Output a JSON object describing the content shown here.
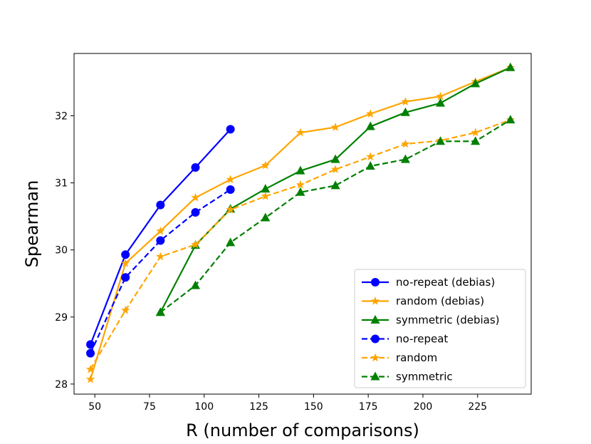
{
  "chart_data": {
    "type": "line",
    "title": "",
    "xlabel": "R (number of comparisons)",
    "ylabel": "Spearman",
    "xlim": [
      40.5,
      249.5
    ],
    "ylim": [
      27.85,
      32.93
    ],
    "xticks": [
      50,
      75,
      100,
      125,
      150,
      175,
      200,
      225
    ],
    "yticks": [
      28,
      29,
      30,
      31,
      32
    ],
    "legend_position": "bottom-right",
    "series": [
      {
        "name": "no-repeat (debias)",
        "color": "#0000ff",
        "linestyle": "solid",
        "marker": "circle",
        "x": [
          48,
          64,
          80,
          96,
          112
        ],
        "y": [
          28.59,
          29.93,
          30.67,
          31.23,
          31.8
        ]
      },
      {
        "name": "random (debias)",
        "color": "#ffa500",
        "linestyle": "solid",
        "marker": "star",
        "x": [
          48,
          64,
          80,
          96,
          112,
          128,
          144,
          160,
          176,
          192,
          208,
          224,
          240
        ],
        "y": [
          28.07,
          29.8,
          30.28,
          30.78,
          31.05,
          31.26,
          31.75,
          31.83,
          32.03,
          32.21,
          32.29,
          32.51,
          32.72
        ]
      },
      {
        "name": "symmetric (debias)",
        "color": "#008000",
        "linestyle": "solid",
        "marker": "triangle",
        "x": [
          80,
          96,
          112,
          128,
          144,
          160,
          176,
          192,
          208,
          224,
          240
        ],
        "y": [
          29.07,
          30.07,
          30.61,
          30.91,
          31.18,
          31.35,
          31.84,
          32.05,
          32.19,
          32.48,
          32.72
        ]
      },
      {
        "name": "no-repeat",
        "color": "#0000ff",
        "linestyle": "dashed",
        "marker": "circle",
        "x": [
          48,
          64,
          80,
          96,
          112
        ],
        "y": [
          28.46,
          29.59,
          30.14,
          30.56,
          30.9
        ]
      },
      {
        "name": "random",
        "color": "#ffa500",
        "linestyle": "dashed",
        "marker": "star",
        "x": [
          48,
          64,
          80,
          96,
          112,
          128,
          144,
          160,
          176,
          192,
          208,
          224,
          240
        ],
        "y": [
          28.22,
          29.1,
          29.9,
          30.08,
          30.6,
          30.8,
          30.97,
          31.2,
          31.39,
          31.58,
          31.63,
          31.75,
          31.94
        ]
      },
      {
        "name": "symmetric",
        "color": "#008000",
        "linestyle": "dashed",
        "marker": "triangle",
        "x": [
          80,
          96,
          112,
          128,
          144,
          160,
          176,
          192,
          208,
          224,
          240
        ],
        "y": [
          29.07,
          29.47,
          30.11,
          30.48,
          30.86,
          30.96,
          31.25,
          31.35,
          31.62,
          31.62,
          31.94
        ]
      }
    ]
  }
}
